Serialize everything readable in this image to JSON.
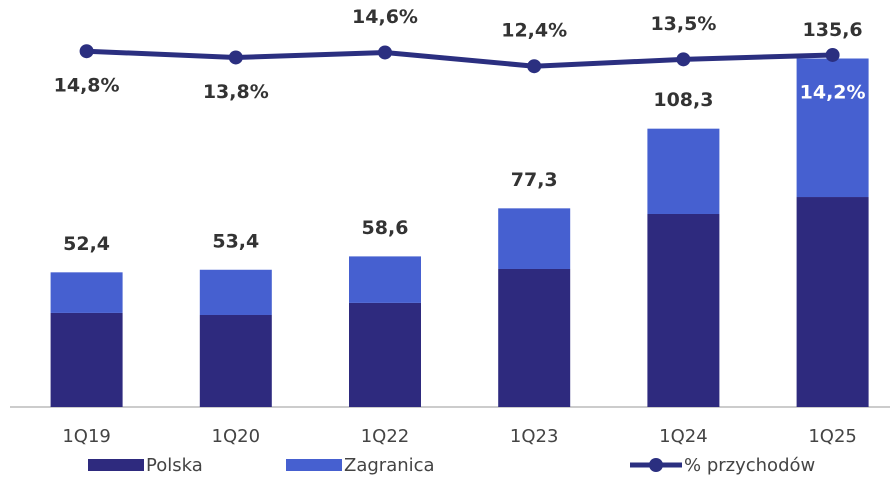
{
  "chart_data": {
    "type": "bar",
    "categories": [
      "1Q19",
      "1Q20",
      "1Q22",
      "1Q23",
      "1Q24",
      "1Q25"
    ],
    "series": [
      {
        "name": "Polska",
        "color": "#2e2a7e",
        "values": [
          36.6,
          35.8,
          40.5,
          53.7,
          75.1,
          81.7
        ]
      },
      {
        "name": "Zagranica",
        "color": "#4660d0",
        "values": [
          15.8,
          17.6,
          18.1,
          23.6,
          33.2,
          53.9
        ]
      },
      {
        "name": "% przychodów",
        "type": "line",
        "axis": "y2",
        "color": "#2b2f80",
        "values": [
          14.8,
          13.8,
          14.6,
          12.4,
          13.5,
          14.2
        ],
        "value_labels": [
          "14,8%",
          "13,8%",
          "14,6%",
          "12,4%",
          "13,5%",
          "14,2%"
        ]
      }
    ],
    "totals": [
      52.4,
      53.4,
      58.6,
      77.3,
      108.3,
      135.6
    ],
    "total_labels": [
      "52,4",
      "53,4",
      "58,6",
      "77,3",
      "108,3",
      "135,6"
    ],
    "stacked": true,
    "ylim": [
      0,
      142.8
    ],
    "y2lim": [
      -42.2,
      16.6
    ],
    "legend": "bottom"
  }
}
